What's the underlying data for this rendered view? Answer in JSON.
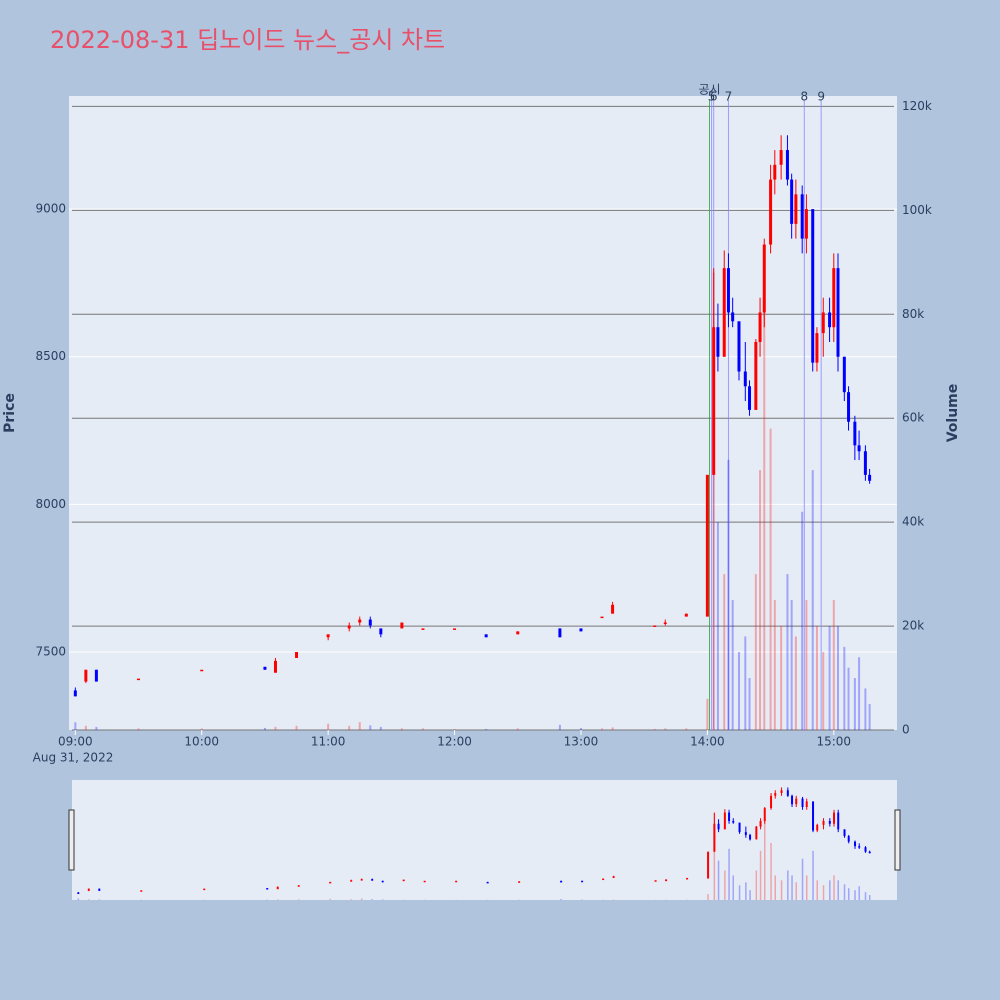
{
  "chart_data": {
    "type": "candlestick",
    "title": "2022-08-31 딥노이드 뉴스_공시 차트",
    "ylabel": "Price",
    "y2label": "Volume",
    "x_date_label": "Aug 31, 2022",
    "up_color": "#ff0000",
    "down_color": "#0000ff",
    "x": [
      "2022-08-31 09:00",
      "2022-08-31 09:05",
      "2022-08-31 09:10",
      "2022-08-31 09:30",
      "2022-08-31 10:00",
      "2022-08-31 10:30",
      "2022-08-31 10:35",
      "2022-08-31 10:45",
      "2022-08-31 11:00",
      "2022-08-31 11:10",
      "2022-08-31 11:15",
      "2022-08-31 11:20",
      "2022-08-31 11:25",
      "2022-08-31 11:35",
      "2022-08-31 11:45",
      "2022-08-31 12:00",
      "2022-08-31 12:15",
      "2022-08-31 12:30",
      "2022-08-31 12:50",
      "2022-08-31 13:00",
      "2022-08-31 13:10",
      "2022-08-31 13:15",
      "2022-08-31 13:35",
      "2022-08-31 13:40",
      "2022-08-31 13:50",
      "2022-08-31 14:00",
      "2022-08-31 14:03",
      "2022-08-31 14:05",
      "2022-08-31 14:08",
      "2022-08-31 14:10",
      "2022-08-31 14:12",
      "2022-08-31 14:15",
      "2022-08-31 14:18",
      "2022-08-31 14:20",
      "2022-08-31 14:23",
      "2022-08-31 14:25",
      "2022-08-31 14:27",
      "2022-08-31 14:30",
      "2022-08-31 14:32",
      "2022-08-31 14:35",
      "2022-08-31 14:38",
      "2022-08-31 14:40",
      "2022-08-31 14:42",
      "2022-08-31 14:45",
      "2022-08-31 14:47",
      "2022-08-31 14:50",
      "2022-08-31 14:52",
      "2022-08-31 14:55",
      "2022-08-31 14:58",
      "2022-08-31 15:00",
      "2022-08-31 15:02",
      "2022-08-31 15:05",
      "2022-08-31 15:07",
      "2022-08-31 15:10",
      "2022-08-31 15:12",
      "2022-08-31 15:15",
      "2022-08-31 15:17"
    ],
    "open": [
      7370,
      7400,
      7440,
      7410,
      7440,
      7450,
      7430,
      7480,
      7550,
      7580,
      7600,
      7610,
      7580,
      7580,
      7580,
      7580,
      7560,
      7560,
      7580,
      7580,
      7620,
      7630,
      7590,
      7600,
      7620,
      7620,
      8100,
      8600,
      8500,
      8800,
      8650,
      8620,
      8450,
      8400,
      8320,
      8550,
      8650,
      8880,
      9100,
      9150,
      9200,
      9100,
      8950,
      9050,
      8900,
      9000,
      8480,
      8580,
      8650,
      8600,
      8800,
      8500,
      8380,
      8280,
      8200,
      8180,
      8100
    ],
    "high": [
      7380,
      7440,
      7440,
      7410,
      7440,
      7450,
      7480,
      7500,
      7560,
      7600,
      7620,
      7620,
      7580,
      7600,
      7580,
      7580,
      7560,
      7570,
      7580,
      7580,
      7620,
      7670,
      7590,
      7610,
      7630,
      8100,
      8800,
      8680,
      8860,
      8850,
      8700,
      8620,
      8550,
      8420,
      8560,
      8700,
      8900,
      9150,
      9200,
      9250,
      9250,
      9120,
      9100,
      9080,
      9050,
      9000,
      8600,
      8700,
      8700,
      8850,
      8850,
      8500,
      8400,
      8300,
      8250,
      8200,
      8120
    ],
    "low": [
      7350,
      7395,
      7400,
      7410,
      7440,
      7440,
      7430,
      7480,
      7540,
      7570,
      7590,
      7580,
      7550,
      7580,
      7580,
      7580,
      7550,
      7560,
      7550,
      7570,
      7620,
      7630,
      7590,
      7590,
      7620,
      7620,
      8100,
      8450,
      8500,
      8600,
      8600,
      8420,
      8350,
      8300,
      8320,
      8500,
      8600,
      8850,
      9050,
      9100,
      9080,
      8900,
      8900,
      8850,
      8850,
      8450,
      8450,
      8500,
      8550,
      8550,
      8450,
      8350,
      8250,
      8150,
      8150,
      8080,
      8070
    ],
    "close": [
      7350,
      7440,
      7400,
      7410,
      7440,
      7440,
      7470,
      7500,
      7560,
      7590,
      7610,
      7590,
      7560,
      7600,
      7580,
      7580,
      7550,
      7570,
      7550,
      7570,
      7620,
      7660,
      7590,
      7600,
      7630,
      8100,
      8600,
      8500,
      8800,
      8650,
      8620,
      8450,
      8400,
      8320,
      8550,
      8650,
      8880,
      9100,
      9150,
      9200,
      9100,
      8950,
      9050,
      8900,
      9000,
      8480,
      8580,
      8650,
      8600,
      8800,
      8500,
      8380,
      8280,
      8200,
      8180,
      8100,
      8080
    ],
    "volume": [
      1500,
      800,
      600,
      300,
      300,
      400,
      600,
      800,
      1200,
      800,
      1500,
      900,
      600,
      300,
      300,
      200,
      200,
      300,
      1000,
      400,
      300,
      500,
      200,
      300,
      300,
      6000,
      88000,
      40000,
      30000,
      52000,
      25000,
      15000,
      18000,
      10000,
      30000,
      50000,
      84000,
      58000,
      25000,
      20000,
      30000,
      25000,
      18000,
      42000,
      25000,
      50000,
      20000,
      15000,
      20000,
      25000,
      20000,
      16000,
      12000,
      10000,
      14000,
      8000,
      5000
    ],
    "ylim": [
      7236,
      9383
    ],
    "yticks": [
      7500,
      8000,
      8500,
      9000
    ],
    "y2lim": [
      0,
      122000
    ],
    "y2ticks": [
      0,
      {
        "value": 20000,
        "label": "20k"
      },
      {
        "value": 40000,
        "label": "40k"
      },
      {
        "value": 60000,
        "label": "60k"
      },
      {
        "value": 80000,
        "label": "80k"
      },
      {
        "value": 100000,
        "label": "100k"
      },
      {
        "value": 120000,
        "label": "120k"
      }
    ],
    "xlim": [
      "2022-08-31 08:57",
      "2022-08-31 15:30"
    ],
    "xticks": [
      {
        "value": "2022-08-31 09:00",
        "label": "09:00"
      },
      {
        "value": "2022-08-31 10:00",
        "label": "10:00"
      },
      {
        "value": "2022-08-31 11:00",
        "label": "11:00"
      },
      {
        "value": "2022-08-31 12:00",
        "label": "12:00"
      },
      {
        "value": "2022-08-31 13:00",
        "label": "13:00"
      },
      {
        "value": "2022-08-31 14:00",
        "label": "14:00"
      },
      {
        "value": "2022-08-31 15:00",
        "label": "15:00"
      }
    ],
    "annotations": [
      {
        "x": "2022-08-31 14:01",
        "text": "공시",
        "color": "#2ca02c"
      },
      {
        "x": "2022-08-31 14:02",
        "text": "5",
        "color": "#8888ff"
      },
      {
        "x": "2022-08-31 14:03",
        "text": "6",
        "color": "#8888ff"
      },
      {
        "x": "2022-08-31 14:10",
        "text": "7",
        "color": "#8888ff"
      },
      {
        "x": "2022-08-31 14:46",
        "text": "8",
        "color": "#8888ff"
      },
      {
        "x": "2022-08-31 14:54",
        "text": "9",
        "color": "#8888ff"
      }
    ]
  }
}
